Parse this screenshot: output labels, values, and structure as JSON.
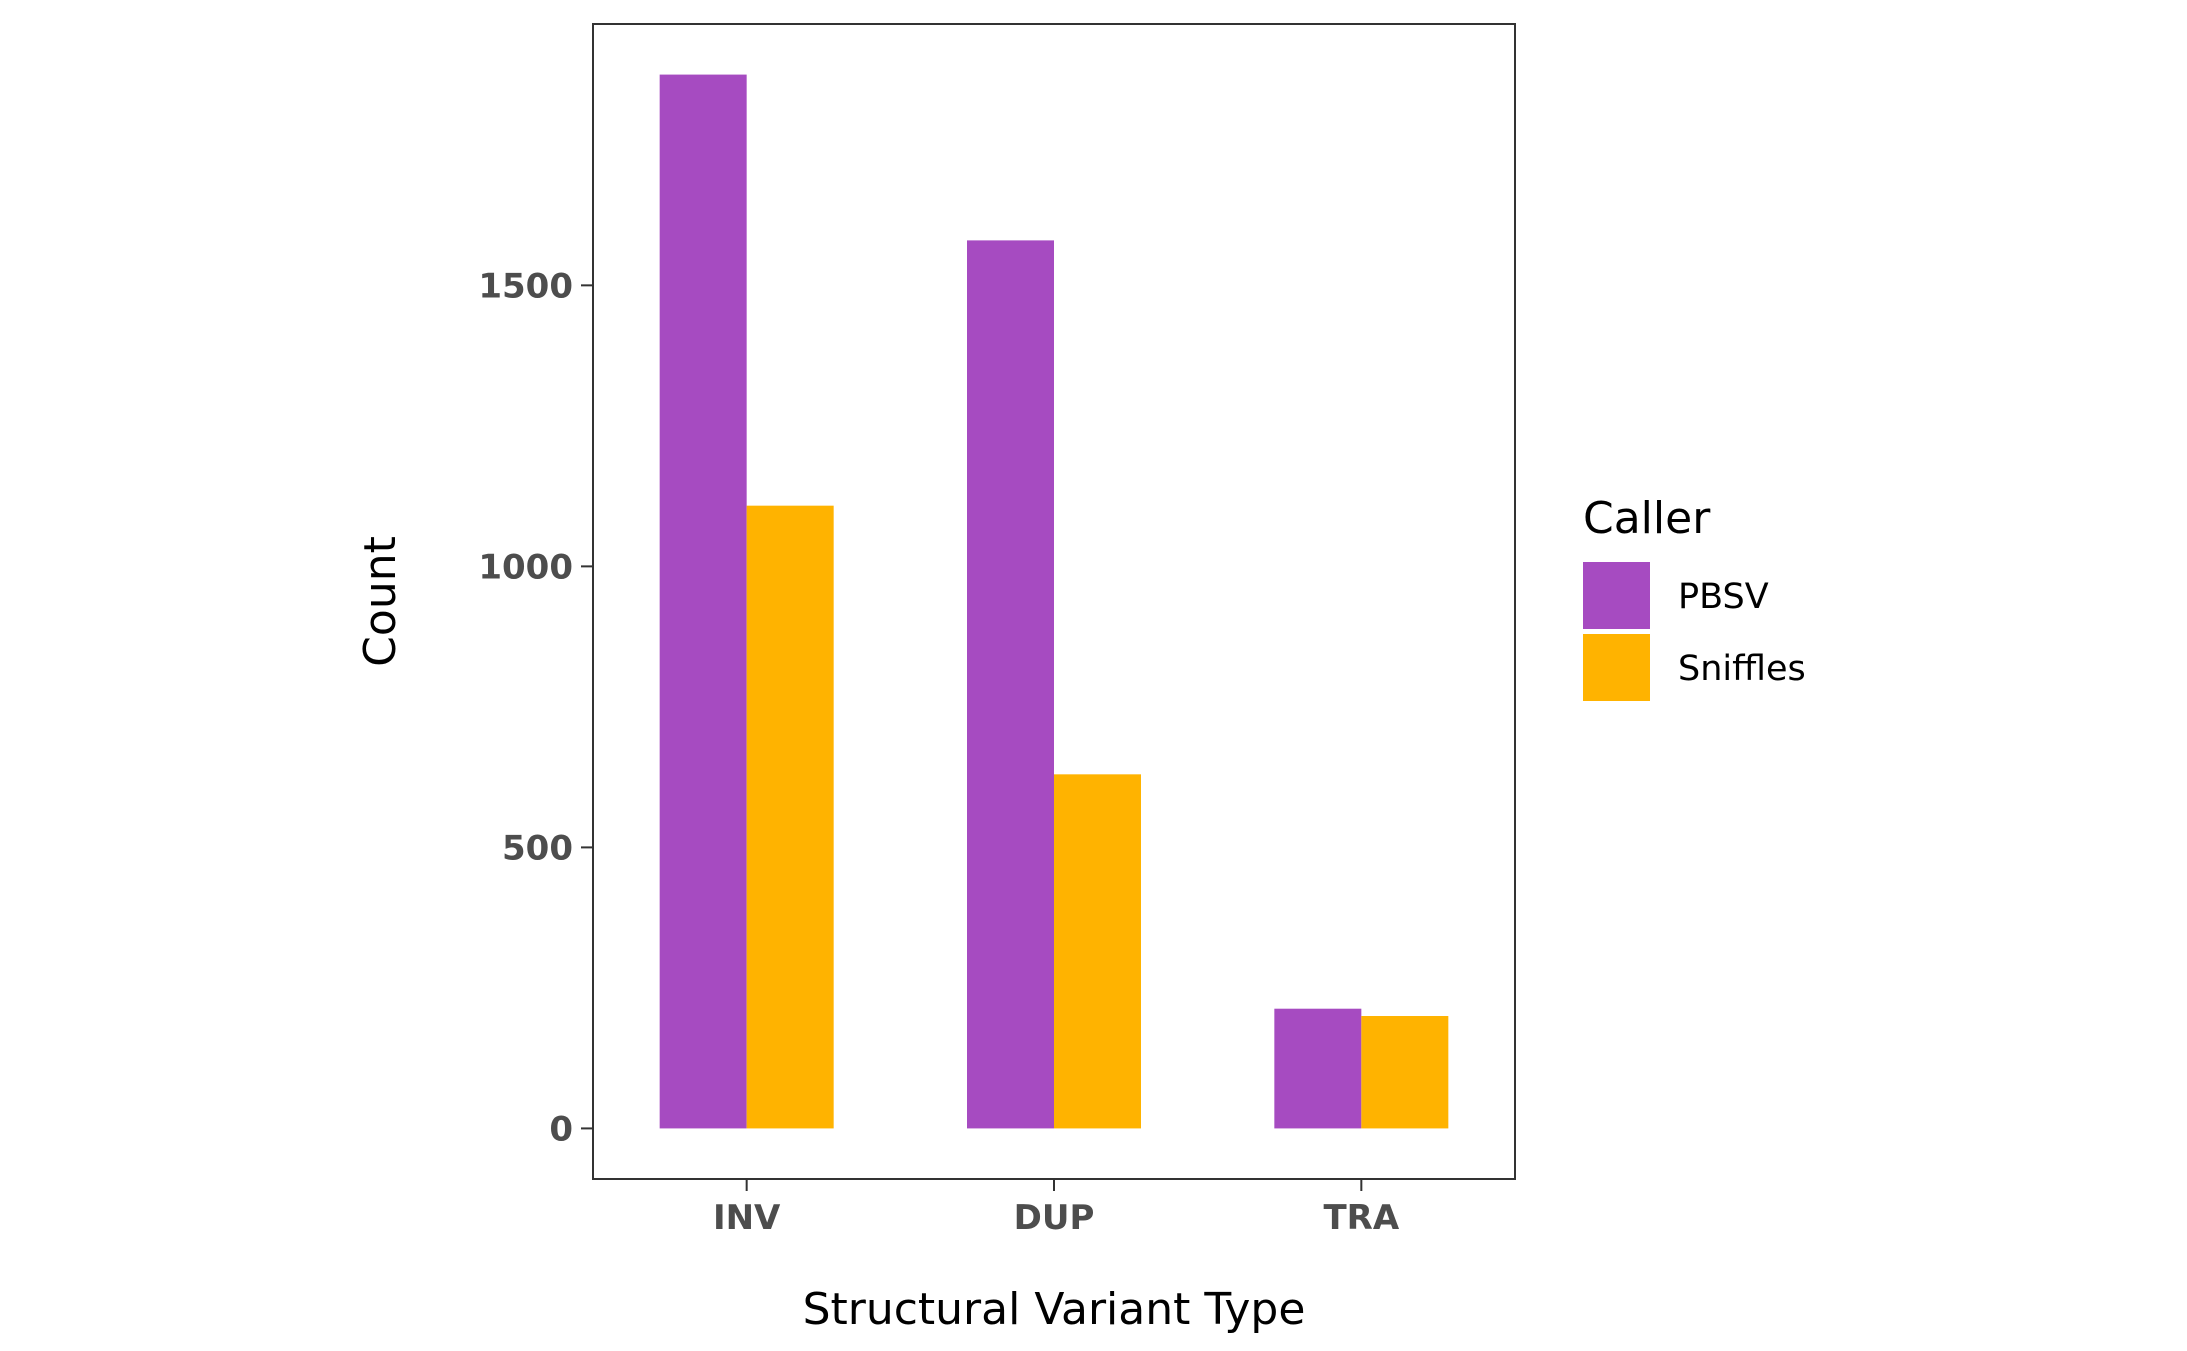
{
  "chart_data": {
    "type": "bar",
    "categories": [
      "INV",
      "DUP",
      "TRA"
    ],
    "series": [
      {
        "name": "PBSV",
        "values": [
          1875,
          1580,
          213
        ],
        "color": "#a64bc1"
      },
      {
        "name": "Sniffles",
        "values": [
          1108,
          630,
          200
        ],
        "color": "#ffb300"
      }
    ],
    "xlabel": "Structural Variant Type",
    "ylabel": "Count",
    "ylim": [
      -90,
      1965
    ],
    "yticks": [
      0,
      500,
      1000,
      1500
    ],
    "grid": false,
    "legend": {
      "title": "Caller",
      "placement": "right"
    }
  }
}
